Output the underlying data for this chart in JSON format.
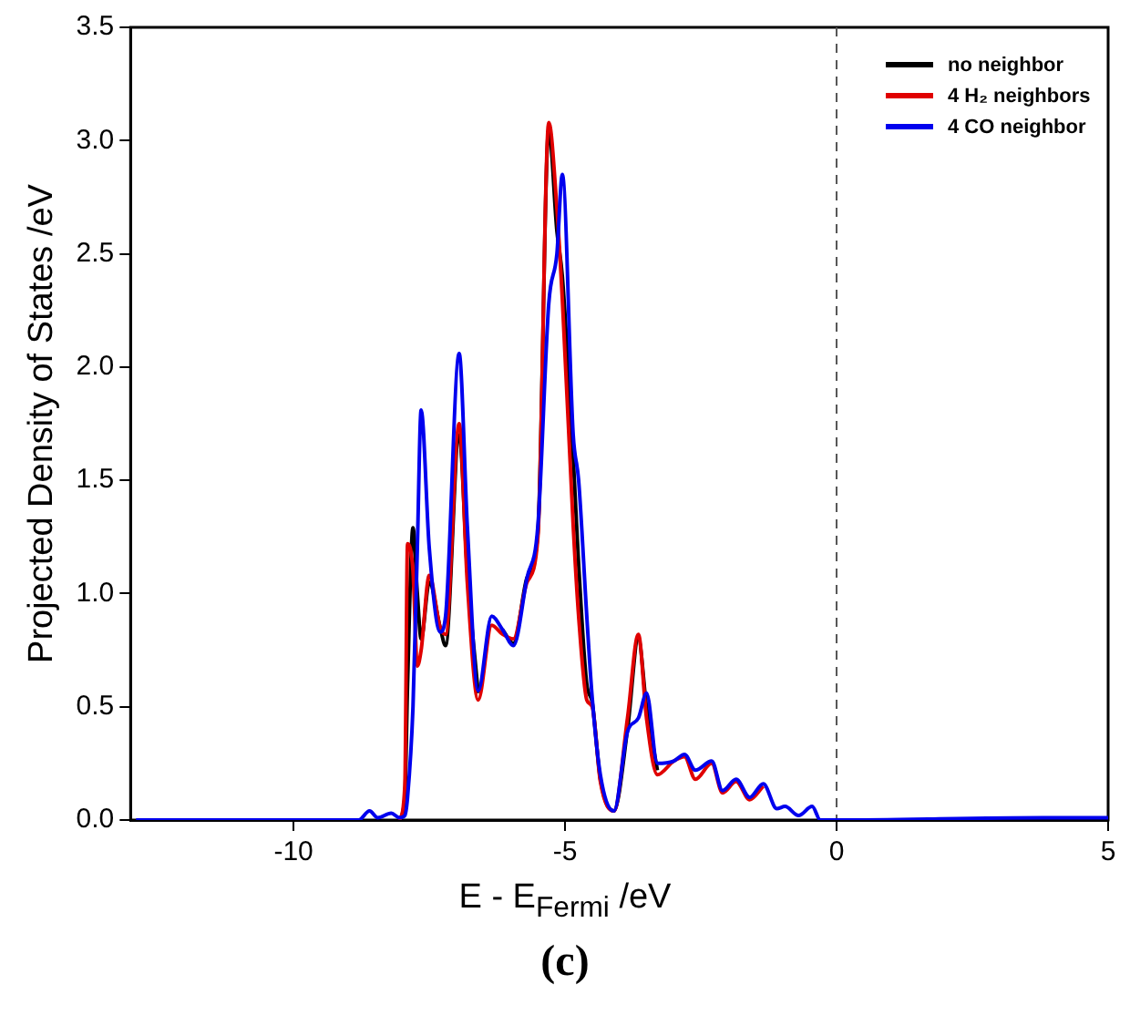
{
  "chart_data": {
    "type": "line",
    "xlabel": "E - E$_{Fermi}$ /eV",
    "ylabel": "Projected Density of States /eV",
    "x": [
      -12.9,
      -8.8,
      -8.6,
      -8.45,
      -8.2,
      -8.05,
      -7.95,
      -7.9,
      -7.8,
      -7.72,
      -7.65,
      -7.5,
      -7.3,
      -7.2,
      -6.95,
      -6.8,
      -6.6,
      -6.35,
      -6.15,
      -5.95,
      -5.7,
      -5.5,
      -5.3,
      -5.15,
      -5.05,
      -4.85,
      -4.75,
      -4.6,
      -4.5,
      -4.35,
      -4.1,
      -3.85,
      -3.65,
      -3.5,
      -3.3,
      -3.0,
      -2.8,
      -2.6,
      -2.3,
      -2.1,
      -1.85,
      -1.6,
      -1.35,
      -1.1,
      -0.95,
      -0.7,
      -0.45,
      -0.3,
      0,
      3.8,
      5
    ],
    "series": [
      {
        "name": "no neighbor",
        "color": "#000000",
        "values": [
          null,
          null,
          null,
          null,
          null,
          0,
          0.1,
          0.6,
          1.29,
          1.0,
          0.8,
          1.05,
          0.85,
          0.77,
          1.7,
          1.1,
          0.56,
          null,
          0.84,
          0.78,
          1.07,
          1.27,
          3.05,
          2.6,
          2.4,
          1.6,
          1.13,
          0.6,
          0.52,
          0.18,
          0.04,
          0.4,
          0.8,
          0.5,
          0.22,
          null,
          null,
          null,
          null,
          null,
          null,
          null,
          null,
          null,
          null,
          null,
          null,
          null,
          null,
          null,
          null
        ]
      },
      {
        "name": "4 H₂ neighbors",
        "color": "#e00000",
        "values": [
          null,
          null,
          null,
          null,
          null,
          0,
          0.15,
          1.22,
          1.1,
          0.68,
          0.75,
          1.08,
          0.85,
          0.82,
          1.75,
          1.05,
          0.53,
          0.86,
          0.82,
          0.8,
          1.05,
          1.25,
          3.08,
          2.7,
          2.3,
          1.3,
          0.9,
          0.53,
          0.5,
          0.17,
          0.04,
          0.45,
          0.82,
          0.45,
          0.2,
          0.26,
          0.28,
          0.18,
          0.25,
          0.12,
          0.17,
          0.09,
          0.15,
          null,
          null,
          null,
          null,
          null,
          null,
          null,
          null
        ]
      },
      {
        "name": "4 CO neighbor",
        "color": "#0000ee",
        "values": [
          0,
          0,
          0.04,
          0.01,
          0.03,
          0.01,
          0.02,
          0.1,
          0.5,
          1.2,
          1.81,
          1.2,
          0.83,
          0.9,
          2.06,
          1.3,
          0.57,
          0.9,
          0.84,
          0.77,
          1.07,
          1.3,
          2.28,
          2.5,
          2.85,
          1.7,
          1.5,
          0.9,
          0.54,
          0.2,
          0.04,
          0.39,
          0.45,
          0.56,
          0.25,
          0.26,
          0.29,
          0.22,
          0.26,
          0.13,
          0.18,
          0.1,
          0.16,
          0.05,
          0.06,
          0.02,
          0.06,
          0,
          0,
          0.01,
          0.01
        ]
      }
    ],
    "xlim": [
      -13,
      5
    ],
    "xticks": [
      -10,
      -5,
      0,
      5
    ],
    "ylim": [
      0,
      3.5
    ],
    "yticks": [
      {
        "value": 0,
        "label": "0.0"
      },
      {
        "value": 0.5,
        "label": "0.5"
      },
      {
        "value": 1,
        "label": "1.0"
      },
      {
        "value": 1.5,
        "label": "1.5"
      },
      {
        "value": 2,
        "label": "2.0"
      },
      {
        "value": 2.5,
        "label": "2.5"
      },
      {
        "value": 3,
        "label": "3.0"
      },
      {
        "value": 3.5,
        "label": "3.5"
      }
    ],
    "ref_lines": [
      {
        "axis": "x",
        "value": 0,
        "color": "#555555",
        "line_style": "dashed"
      }
    ],
    "legend": "top right",
    "grid": false,
    "marker": "none",
    "line_style": "solid",
    "annotations": [
      "(c)"
    ]
  }
}
